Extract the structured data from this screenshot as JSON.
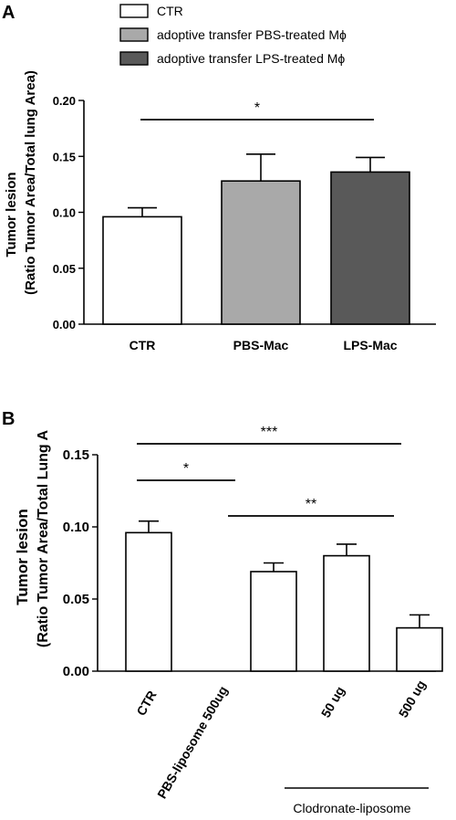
{
  "chart_data": [
    {
      "type": "bar",
      "panel_label": "A",
      "categories": [
        "CTR",
        "PBS-Mac",
        "LPS-Mac"
      ],
      "values": [
        0.096,
        0.128,
        0.136
      ],
      "errors": [
        0.008,
        0.024,
        0.013
      ],
      "colors": [
        "#ffffff",
        "#a9a9a9",
        "#595959"
      ],
      "ylabel": "Tumor lesion",
      "ylabel2": "(Ratio Tumor Area/Total lung Area)",
      "ylim": [
        0.0,
        0.2
      ],
      "yticks": [
        "0.00",
        "0.05",
        "0.10",
        "0.15",
        "0.20"
      ],
      "legend": {
        "placement": "top",
        "entries": [
          {
            "label": "CTR",
            "color": "#ffffff"
          },
          {
            "label": "adoptive transfer PBS-treated Mϕ",
            "color": "#a9a9a9"
          },
          {
            "label": "adoptive transfer LPS-treated Mϕ",
            "color": "#595959"
          }
        ]
      },
      "significance": [
        {
          "from": 0,
          "to": 2,
          "label": "*"
        }
      ]
    },
    {
      "type": "bar",
      "panel_label": "B",
      "categories": [
        "CTR",
        "PBS-liposome 500ug",
        "50 ug",
        "500 ug"
      ],
      "values": [
        0.096,
        0.069,
        0.08,
        0.03
      ],
      "errors": [
        0.008,
        0.006,
        0.008,
        0.009
      ],
      "colors": [
        "#ffffff",
        "#ffffff",
        "#ffffff",
        "#ffffff"
      ],
      "ylabel": "Tumor lesion",
      "ylabel2": "(Ratio Tumor Area/Total  Lung A",
      "ylim": [
        0.0,
        0.15
      ],
      "yticks": [
        "0.00",
        "0.05",
        "0.10",
        "0.15"
      ],
      "group_label": "Clodronate-liposome",
      "significance": [
        {
          "from": 0,
          "to": 3,
          "label": "***"
        },
        {
          "from": 0,
          "to": 1,
          "label": "*"
        },
        {
          "from": 1,
          "to": 3,
          "label": "**"
        }
      ]
    }
  ]
}
